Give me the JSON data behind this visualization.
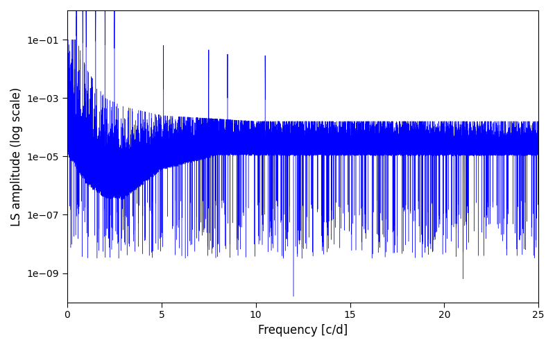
{
  "line_color": "#0000FF",
  "xlabel": "Frequency [c/d]",
  "ylabel": "LS amplitude (log scale)",
  "xlim": [
    0,
    25
  ],
  "ylim": [
    1e-10,
    1.0
  ],
  "ytick_powers": [
    -9,
    -7,
    -5,
    -3,
    -1
  ],
  "xticks": [
    0,
    5,
    10,
    15,
    20,
    25
  ],
  "fig_width": 8.0,
  "fig_height": 5.0,
  "dpi": 100,
  "seed": 7,
  "n_points": 50000,
  "freq_max": 25.0,
  "background_color": "#ffffff",
  "line_width": 0.3
}
